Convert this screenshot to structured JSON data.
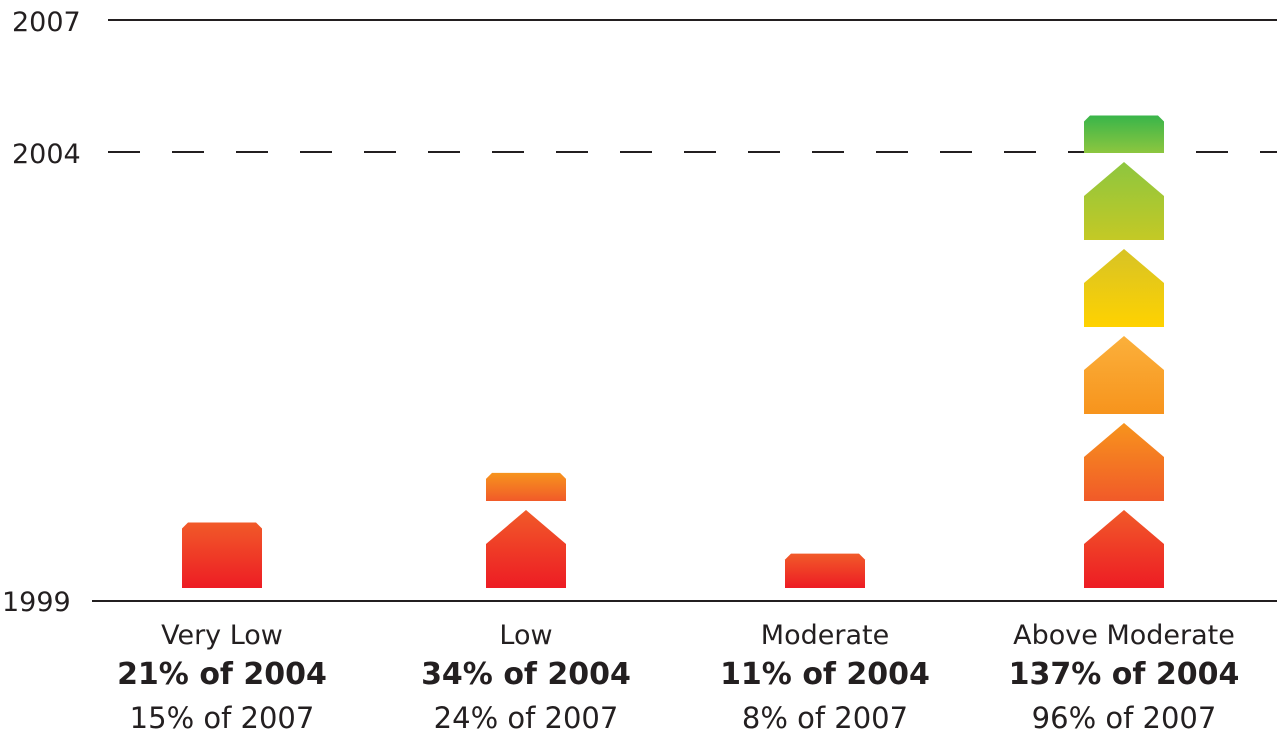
{
  "chart_data": {
    "type": "bar",
    "title": "",
    "xlabel": "",
    "ylabel": "",
    "y_reference_lines": [
      {
        "label": "2007",
        "style": "solid"
      },
      {
        "label": "2004",
        "style": "dashed"
      }
    ],
    "baseline_label": "1999",
    "categories": [
      {
        "name": "Very Low",
        "pct_of_2004": "21% of 2004",
        "pct_of_2007": "15% of 2007",
        "value_pct_2004": 21,
        "value_pct_2007": 15
      },
      {
        "name": "Low",
        "pct_of_2004": "34% of 2004",
        "pct_of_2007": "24% of 2007",
        "value_pct_2004": 34,
        "value_pct_2007": 24
      },
      {
        "name": "Moderate",
        "pct_of_2004": "11% of 2004",
        "pct_of_2007": "8% of 2007",
        "value_pct_2004": 11,
        "value_pct_2007": 8
      },
      {
        "name": "Above Moderate",
        "pct_of_2004": "137% of 2004",
        "pct_of_2007": "96% of 2007",
        "value_pct_2004": 137,
        "value_pct_2007": 96
      }
    ],
    "icon": "house-shape",
    "colors": [
      "#ed1c24",
      "#f26522",
      "#f7941d",
      "#ffc20e",
      "#c4c925",
      "#4aaa42"
    ]
  }
}
